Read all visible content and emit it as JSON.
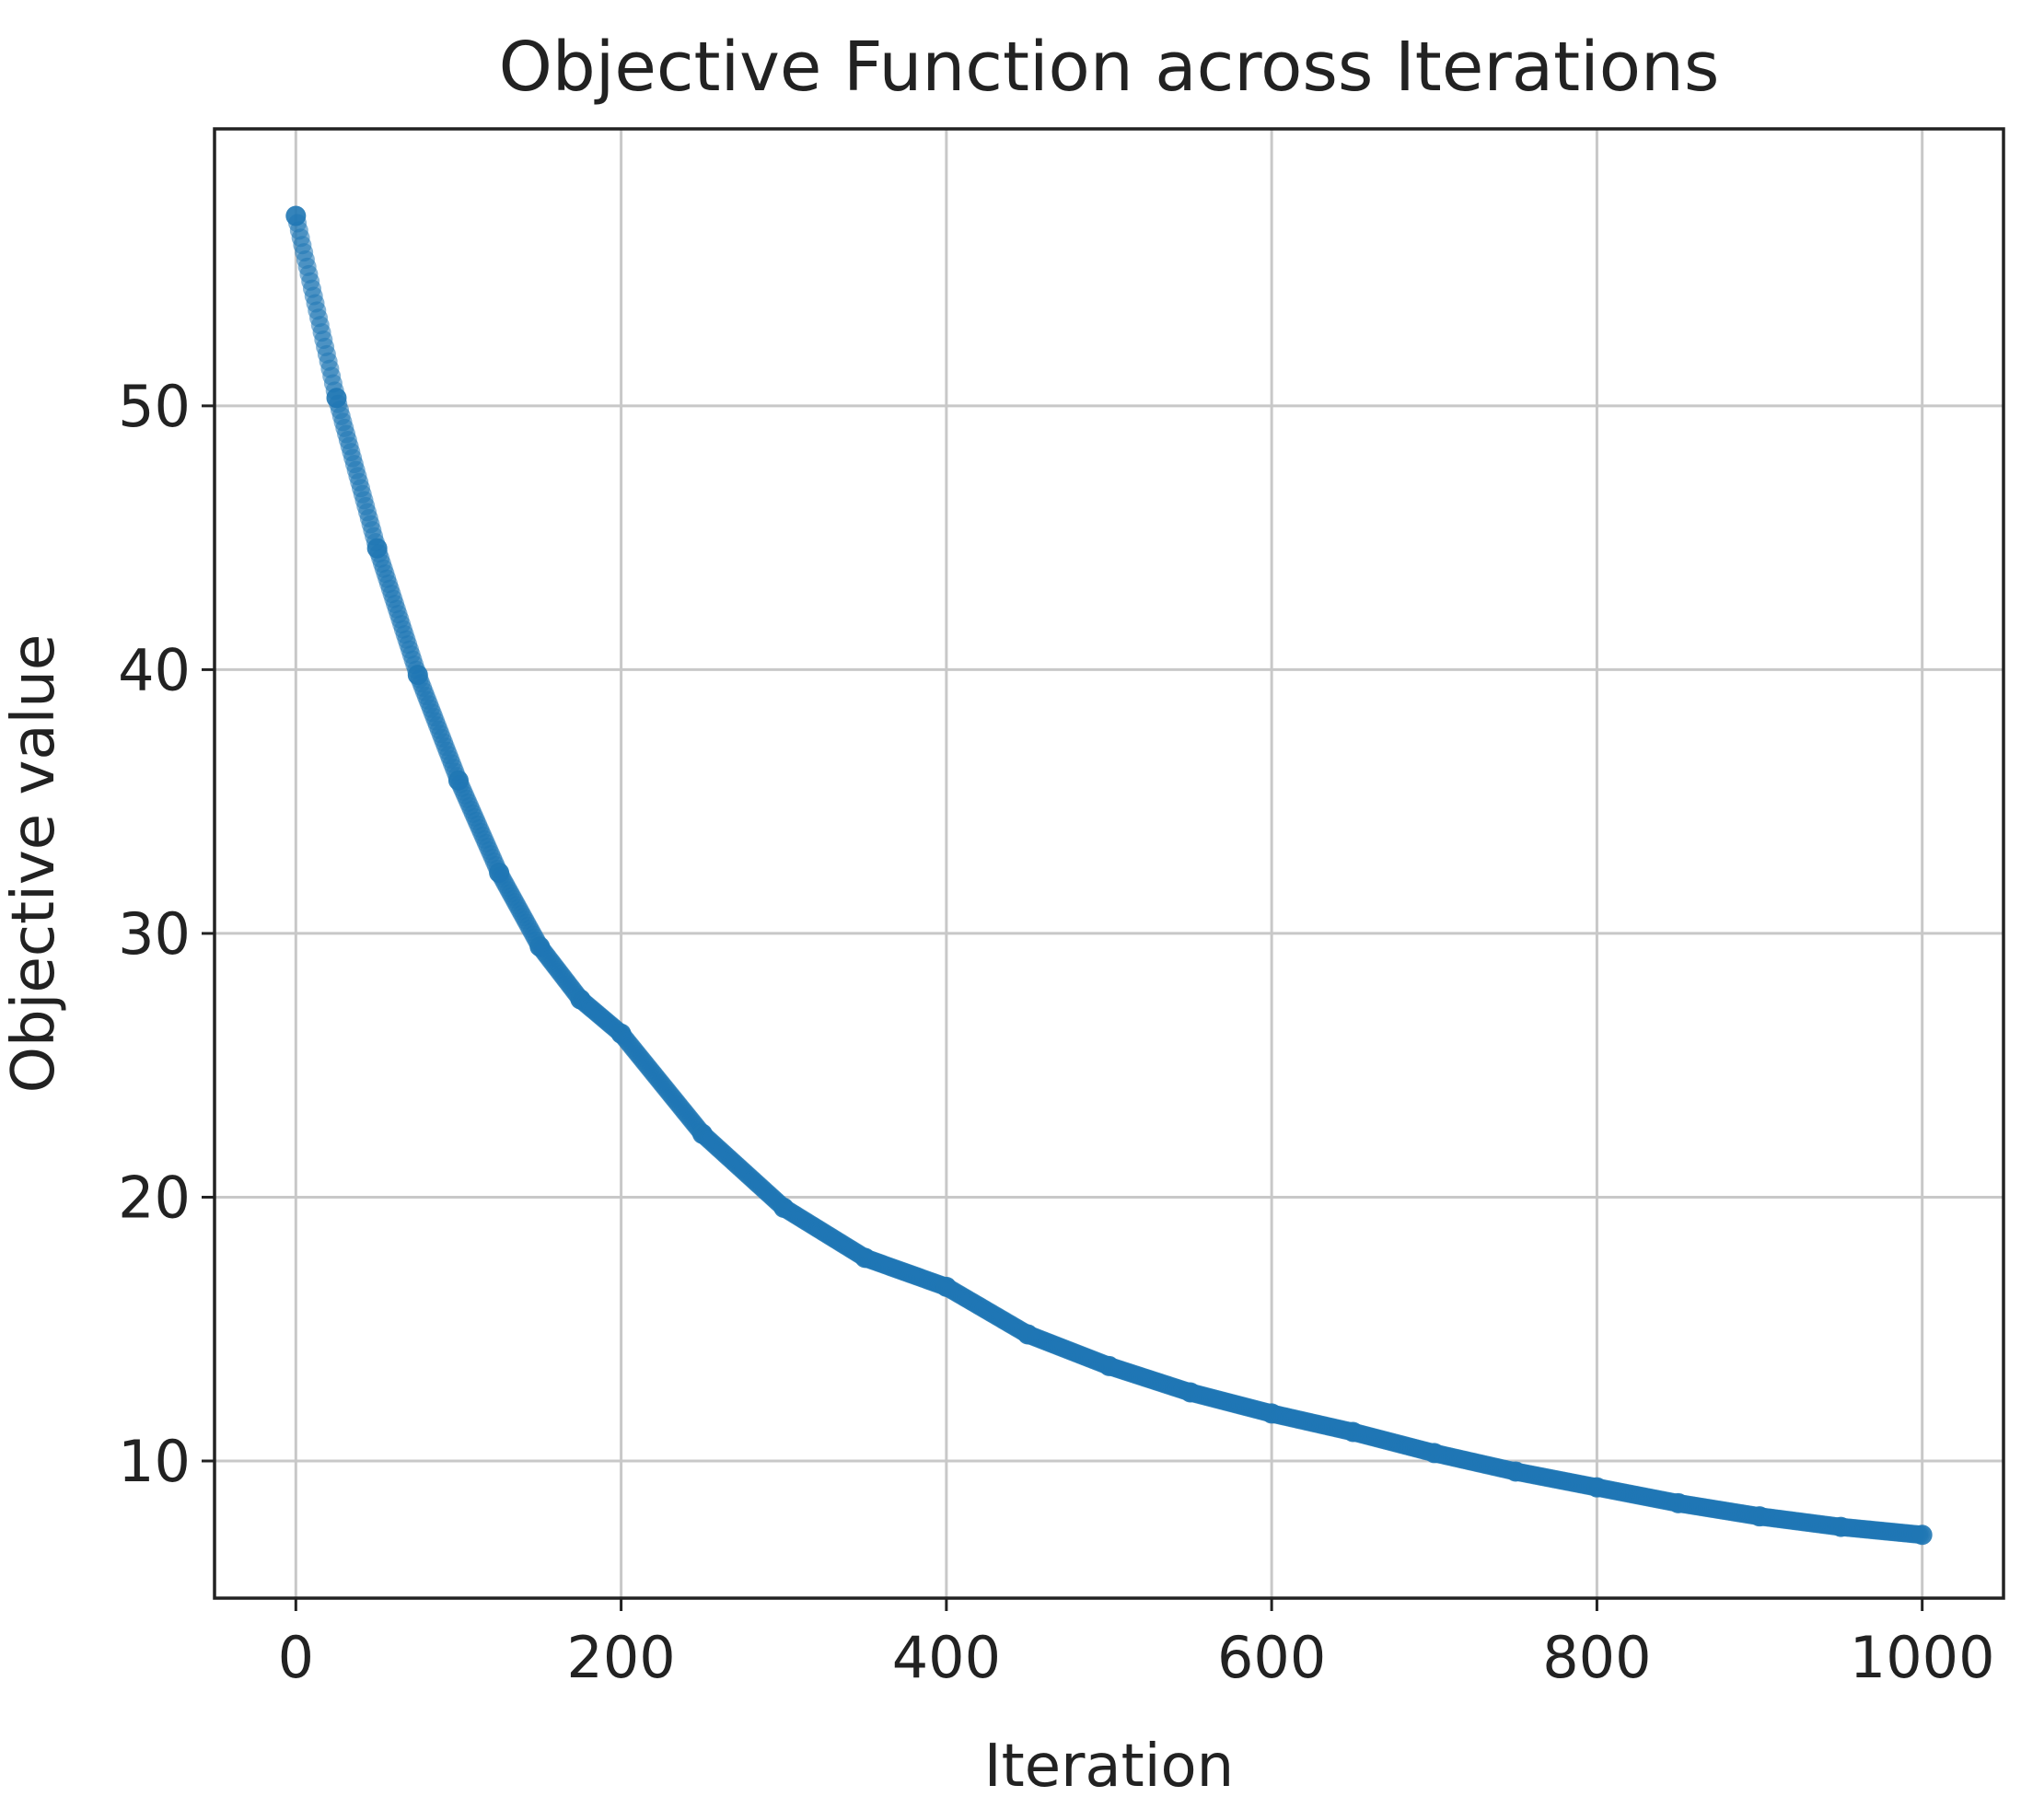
{
  "chart_data": {
    "type": "scatter",
    "title": "Objective Function across Iterations",
    "xlabel": "Iteration",
    "ylabel": "Objective value",
    "xlim": [
      -50,
      1050
    ],
    "ylim": [
      4.8,
      60.5
    ],
    "xticks": [
      0,
      200,
      400,
      600,
      800,
      1000
    ],
    "xtick_labels": [
      "0",
      "200",
      "400",
      "600",
      "800",
      "1000"
    ],
    "yticks": [
      10,
      20,
      30,
      40,
      50
    ],
    "ytick_labels": [
      "10",
      "20",
      "30",
      "40",
      "50"
    ],
    "grid": true,
    "legend": "none",
    "color": "#1f77b4",
    "series": [
      {
        "x": [
          0,
          25,
          50,
          75,
          100,
          125,
          150,
          175,
          200,
          250,
          300,
          350,
          400,
          450,
          500,
          550,
          600,
          650,
          700,
          750,
          800,
          850,
          900,
          950,
          1000
        ],
        "values": [
          57.2,
          50.3,
          44.6,
          39.8,
          35.8,
          32.3,
          29.5,
          27.5,
          26.2,
          22.4,
          19.6,
          17.7,
          16.6,
          14.8,
          13.6,
          12.6,
          11.8,
          11.1,
          10.3,
          9.6,
          9.0,
          8.4,
          7.9,
          7.5,
          7.2
        ]
      }
    ]
  }
}
